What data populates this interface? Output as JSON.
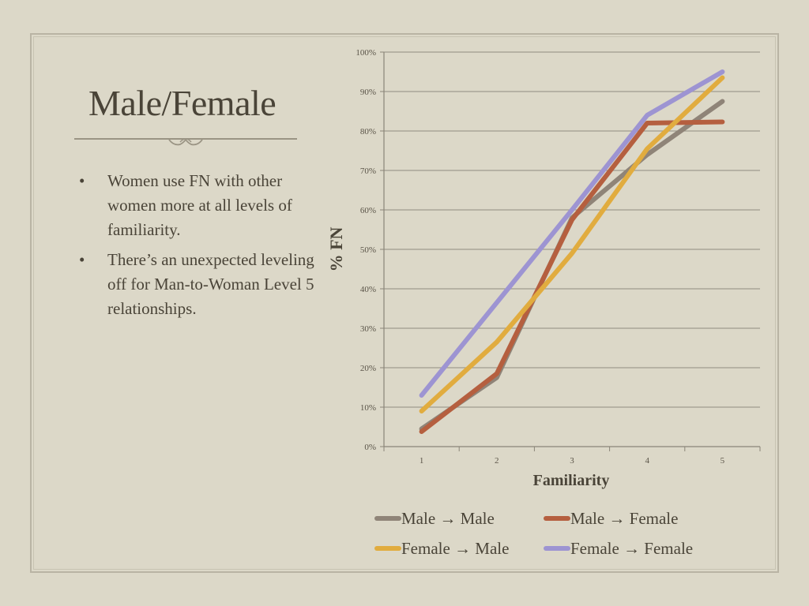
{
  "slide": {
    "title": "Male/Female",
    "bullets": [
      "Women use FN with other women more at all levels of familiarity.",
      "There’s an unexpected leveling off for Man-to-Woman Level 5 relationships."
    ],
    "bullet_glyph": "•"
  },
  "chart_data": {
    "type": "line",
    "title": "",
    "xlabel": "Familiarity",
    "ylabel": "% FN",
    "categories": [
      "1",
      "2",
      "3",
      "4",
      "5"
    ],
    "ylim": [
      0,
      100
    ],
    "yticks": [
      "0%",
      "10%",
      "20%",
      "30%",
      "40%",
      "50%",
      "60%",
      "70%",
      "80%",
      "90%",
      "100%"
    ],
    "grid": true,
    "legend_position": "bottom",
    "series": [
      {
        "name": "Male → Male",
        "color": "#8f8478",
        "values": [
          4.5,
          17.5,
          58,
          74,
          87.5
        ]
      },
      {
        "name": "Male → Female",
        "color": "#b55f3f",
        "values": [
          3.8,
          18.5,
          57.5,
          82,
          82.3
        ]
      },
      {
        "name": "Female → Male",
        "color": "#e1ac3f",
        "values": [
          9,
          26.5,
          49,
          75.5,
          93.5
        ]
      },
      {
        "name": "Female → Female",
        "color": "#9d94d2",
        "values": [
          13,
          36.5,
          60,
          84,
          95
        ]
      }
    ]
  }
}
